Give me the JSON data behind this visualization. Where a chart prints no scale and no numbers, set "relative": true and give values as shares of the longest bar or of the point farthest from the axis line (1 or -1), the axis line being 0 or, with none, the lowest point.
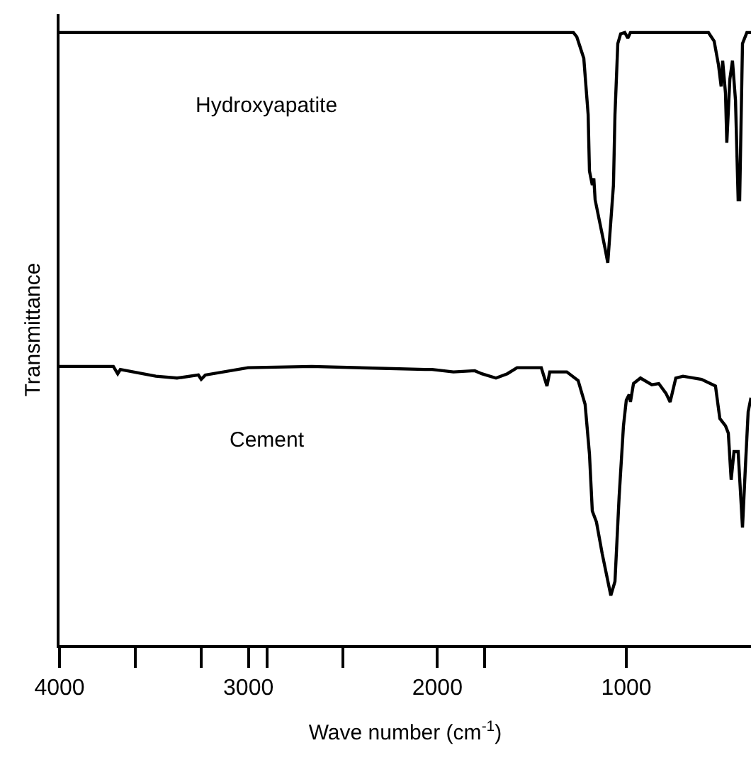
{
  "chart_data": {
    "type": "line",
    "relative": true,
    "xlabel": "Wave number (cm$^{-1}$)",
    "ylabel": "Transmittance",
    "xlim": [
      4000,
      340
    ],
    "xticks": [
      4000,
      3000,
      2000,
      1000,
      {
        "value": 3600,
        "label": null
      },
      {
        "value": 3250,
        "label": null
      },
      {
        "value": 2900,
        "label": null
      },
      {
        "value": 2500,
        "label": null
      },
      {
        "value": 1750,
        "label": null
      }
    ],
    "legend": false,
    "marker": "none",
    "line_style": "solid",
    "series": [
      {
        "name": "Hydroxyapatite",
        "color": "#000000",
        "x": [
          4000,
          1280,
          1262,
          1225,
          1202,
          1195,
          1180,
          1172,
          1165,
          1112,
          1098,
          1068,
          1060,
          1045,
          1030,
          1008,
          992,
          978,
          565,
          535,
          512,
          498,
          490,
          475,
          468,
          452,
          438,
          422,
          408,
          400,
          385,
          362,
          340
        ],
        "values": [
          1.0,
          1.0,
          0.993,
          0.958,
          0.866,
          0.774,
          0.751,
          0.762,
          0.727,
          0.647,
          0.624,
          0.751,
          0.866,
          0.982,
          0.998,
          1.0,
          0.991,
          1.0,
          1.0,
          0.986,
          0.947,
          0.912,
          0.954,
          0.901,
          0.82,
          0.924,
          0.954,
          0.889,
          0.727,
          0.727,
          0.982,
          1.0,
          1.0
        ]
      },
      {
        "name": "Cement",
        "color": "#000000",
        "x": [
          4000,
          3715,
          3692,
          3678,
          3490,
          3378,
          3265,
          3250,
          3228,
          3002,
          2665,
          2065,
          2028,
          1915,
          1802,
          1765,
          1690,
          1630,
          1578,
          1450,
          1420,
          1405,
          1315,
          1255,
          1218,
          1195,
          1180,
          1158,
          1128,
          1082,
          1060,
          1038,
          1015,
          1000,
          985,
          978,
          962,
          925,
          865,
          828,
          790,
          768,
          738,
          700,
          602,
          528,
          505,
          475,
          460,
          445,
          430,
          408,
          385,
          370,
          355,
          340
        ],
        "values": [
          0.455,
          0.455,
          0.443,
          0.45,
          0.439,
          0.436,
          0.441,
          0.434,
          0.441,
          0.453,
          0.455,
          0.45,
          0.45,
          0.446,
          0.448,
          0.443,
          0.436,
          0.443,
          0.453,
          0.453,
          0.423,
          0.446,
          0.446,
          0.432,
          0.393,
          0.312,
          0.219,
          0.201,
          0.15,
          0.081,
          0.104,
          0.242,
          0.358,
          0.4,
          0.409,
          0.397,
          0.427,
          0.436,
          0.425,
          0.427,
          0.411,
          0.397,
          0.436,
          0.439,
          0.434,
          0.423,
          0.37,
          0.358,
          0.346,
          0.27,
          0.316,
          0.316,
          0.192,
          0.289,
          0.381,
          0.404
        ]
      }
    ]
  }
}
